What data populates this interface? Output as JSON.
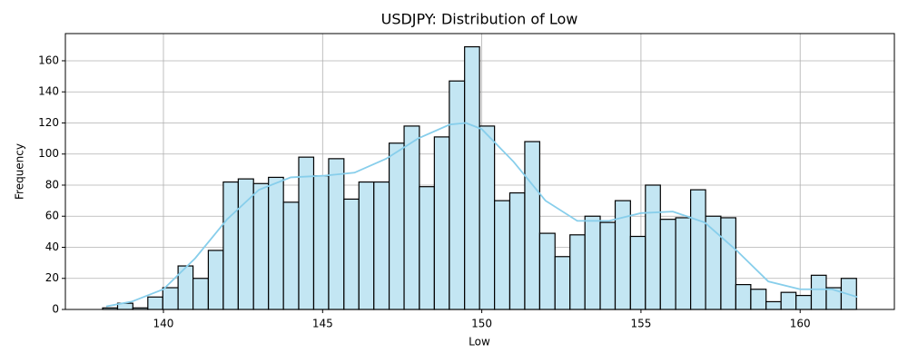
{
  "chart_data": {
    "type": "histogram",
    "title": "USDJPY: Distribution of Low",
    "xlabel": "Low",
    "ylabel": "Frequency",
    "bins": [
      138.09,
      138.56,
      139.04,
      139.51,
      139.98,
      140.46,
      140.93,
      141.41,
      141.88,
      142.35,
      142.83,
      143.3,
      143.77,
      144.25,
      144.72,
      145.19,
      145.67,
      146.14,
      146.61,
      147.09,
      147.56,
      148.04,
      148.51,
      148.98,
      149.46,
      149.93,
      150.4,
      150.88,
      151.35,
      151.82,
      152.3,
      152.77,
      153.24,
      153.72,
      154.19,
      154.67,
      155.14,
      155.61,
      156.09,
      156.56,
      157.03,
      157.51,
      157.98,
      158.45,
      158.93,
      159.4,
      159.87,
      160.35,
      160.82,
      161.29,
      161.77
    ],
    "values": [
      1,
      4,
      1,
      8,
      14,
      28,
      20,
      38,
      82,
      84,
      81,
      85,
      69,
      98,
      86,
      97,
      71,
      82,
      82,
      107,
      118,
      79,
      111,
      147,
      169,
      118,
      70,
      75,
      108,
      49,
      34,
      48,
      60,
      56,
      70,
      47,
      80,
      58,
      59,
      77,
      60,
      59,
      16,
      13,
      5,
      11,
      9,
      22,
      14,
      20
    ],
    "color": "#c3e6f3",
    "edgecolor": "#000000",
    "kde": {
      "color": "#87ceeb",
      "x": [
        138.2,
        139,
        140,
        141,
        142,
        143,
        144,
        145,
        146,
        147,
        148,
        149,
        149.5,
        150,
        151,
        152,
        153,
        154,
        155,
        156,
        157,
        158,
        159,
        160,
        161,
        161.8
      ],
      "y": [
        2,
        5,
        13,
        33,
        58,
        77,
        85,
        86,
        88,
        97,
        110,
        119,
        120,
        116,
        95,
        70,
        57,
        57,
        62,
        63,
        56,
        38,
        18,
        13,
        13,
        8
      ]
    },
    "xlim": [
      136.92,
      162.96
    ],
    "ylim": [
      0,
      177.5
    ],
    "xticks": [
      140,
      145,
      150,
      155,
      160
    ],
    "yticks": [
      0,
      20,
      40,
      60,
      80,
      100,
      120,
      140,
      160
    ],
    "grid": true
  }
}
